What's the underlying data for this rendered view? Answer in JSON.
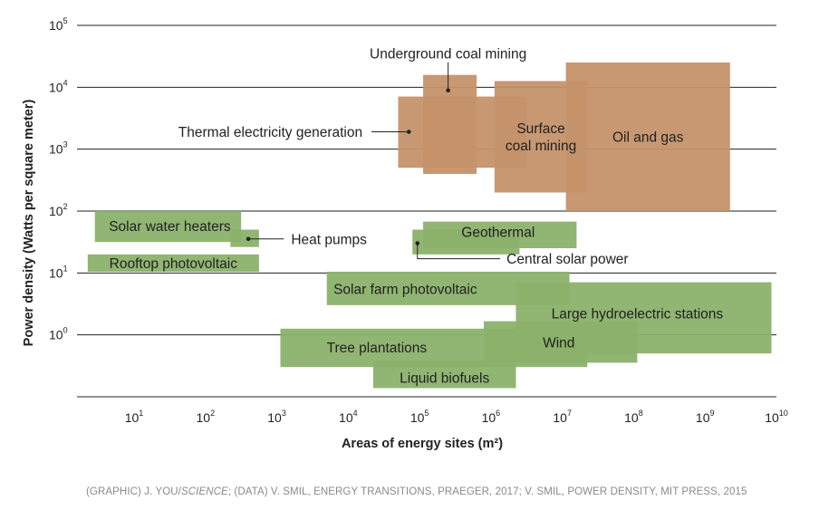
{
  "chart_data": {
    "type": "range-rectangles",
    "title": "",
    "xlabel": "Areas of energy sites (m²)",
    "ylabel": "Power density (Watts per square meter)",
    "x_scale": "log",
    "y_scale": "log",
    "xlim": [
      0.2,
      10
    ],
    "ylim": [
      -1,
      5
    ],
    "x_ticks": [
      {
        "exp": 1,
        "label_base": "10",
        "label_exp": "1"
      },
      {
        "exp": 2,
        "label_base": "10",
        "label_exp": "2"
      },
      {
        "exp": 3,
        "label_base": "10",
        "label_exp": "3"
      },
      {
        "exp": 4,
        "label_base": "10",
        "label_exp": "4"
      },
      {
        "exp": 5,
        "label_base": "10",
        "label_exp": "5"
      },
      {
        "exp": 6,
        "label_base": "10",
        "label_exp": "6"
      },
      {
        "exp": 7,
        "label_base": "10",
        "label_exp": "7"
      },
      {
        "exp": 8,
        "label_base": "10",
        "label_exp": "8"
      },
      {
        "exp": 9,
        "label_base": "10",
        "label_exp": "9"
      },
      {
        "exp": 10,
        "label_base": "10",
        "label_exp": "10"
      }
    ],
    "y_ticks": [
      {
        "exp": 0,
        "label_base": "10",
        "label_exp": "0"
      },
      {
        "exp": 1,
        "label_base": "10",
        "label_exp": "1"
      },
      {
        "exp": 2,
        "label_base": "10",
        "label_exp": "2"
      },
      {
        "exp": 3,
        "label_base": "10",
        "label_exp": "3"
      },
      {
        "exp": 4,
        "label_base": "10",
        "label_exp": "4"
      },
      {
        "exp": 5,
        "label_base": "10",
        "label_exp": "5"
      }
    ],
    "gridlines": "horizontal",
    "colors": {
      "fossil": "#c4926a",
      "renewable": "#8bb16a",
      "grid": "#222222",
      "text": "#222222",
      "credit": "#8a8a8a"
    },
    "series": [
      {
        "name": "Oil and gas",
        "category": "fossil",
        "x_range": [
          7.05,
          9.35
        ],
        "y_range": [
          2,
          4.4
        ],
        "label": [
          "Oil and gas"
        ],
        "label_at": [
          8.2,
          3.2
        ]
      },
      {
        "name": "Surface coal mining",
        "category": "fossil",
        "x_range": [
          6.05,
          7.35
        ],
        "y_range": [
          2.3,
          4.1
        ],
        "label": [
          "Surface",
          "coal mining"
        ],
        "label_at": [
          6.7,
          3.2
        ]
      },
      {
        "name": "Underground coal mining",
        "category": "fossil",
        "x_range": [
          5.05,
          5.8
        ],
        "y_range": [
          2.6,
          4.2
        ],
        "label": [
          "Underground coal mining"
        ],
        "callout": {
          "point": [
            5.4,
            3.95
          ],
          "label_at": [
            5.4,
            4.55
          ]
        }
      },
      {
        "name": "Thermal electricity generation",
        "category": "fossil",
        "x_range": [
          4.7,
          6.5
        ],
        "y_range": [
          2.7,
          3.85
        ],
        "label": [
          "Thermal electricity generation"
        ],
        "callout": {
          "point": [
            4.85,
            3.28
          ],
          "label_at": [
            4.2,
            3.28
          ]
        }
      },
      {
        "name": "Solar water heaters",
        "category": "renewable",
        "x_range": [
          0.45,
          2.5
        ],
        "y_range": [
          1.5,
          2.0
        ],
        "label": [
          "Solar water heaters"
        ],
        "label_at": [
          1.5,
          1.76
        ]
      },
      {
        "name": "Heat pumps",
        "category": "renewable",
        "x_range": [
          2.35,
          2.75
        ],
        "y_range": [
          1.42,
          1.7
        ],
        "label": [
          "Heat pumps"
        ],
        "callout": {
          "point": [
            2.6,
            1.55
          ],
          "label_at": [
            3.2,
            1.55
          ]
        }
      },
      {
        "name": "Rooftop photovoltaic",
        "category": "renewable",
        "x_range": [
          0.35,
          2.75
        ],
        "y_range": [
          1.02,
          1.3
        ],
        "label": [
          "Rooftop photovoltaic"
        ],
        "label_at": [
          1.55,
          1.16
        ]
      },
      {
        "name": "Geothermal",
        "category": "renewable",
        "x_range": [
          5.05,
          7.2
        ],
        "y_range": [
          1.4,
          1.83
        ],
        "label": [
          "Geothermal"
        ],
        "label_at": [
          6.1,
          1.66
        ]
      },
      {
        "name": "Central solar power",
        "category": "renewable",
        "x_range": [
          4.9,
          6.4
        ],
        "y_range": [
          1.3,
          1.7
        ],
        "label": [
          "Central solar power"
        ],
        "callout": {
          "point": [
            4.97,
            1.48
          ],
          "label_at": [
            7.4,
            1.23
          ]
        }
      },
      {
        "name": "Solar farm photovoltaic",
        "category": "renewable",
        "x_range": [
          3.7,
          7.1
        ],
        "y_range": [
          0.48,
          1.02
        ],
        "label": [
          "Solar farm photovoltaic"
        ],
        "label_at": [
          4.8,
          0.74
        ]
      },
      {
        "name": "Large hydroelectric stations",
        "category": "renewable",
        "x_range": [
          6.35,
          9.93
        ],
        "y_range": [
          -0.3,
          0.85
        ],
        "label": [
          "Large hydroelectric stations"
        ],
        "label_at": [
          8.05,
          0.35
        ]
      },
      {
        "name": "Wind",
        "category": "renewable",
        "x_range": [
          5.9,
          8.05
        ],
        "y_range": [
          -0.45,
          0.22
        ],
        "label": [
          "Wind"
        ],
        "label_at": [
          6.95,
          -0.12
        ]
      },
      {
        "name": "Tree plantations",
        "category": "renewable",
        "x_range": [
          3.05,
          7.35
        ],
        "y_range": [
          -0.52,
          0.1
        ],
        "label": [
          "Tree plantations"
        ],
        "label_at": [
          4.4,
          -0.2
        ]
      },
      {
        "name": "Liquid biofuels",
        "category": "renewable",
        "x_range": [
          4.35,
          6.35
        ],
        "y_range": [
          -0.86,
          -0.42
        ],
        "label": [
          "Liquid biofuels"
        ],
        "label_at": [
          5.35,
          -0.69
        ]
      }
    ]
  },
  "credit": {
    "part1": "(GRAPHIC) J. YOU/",
    "part2": "SCIENCE",
    "part3": "; (DATA) V. SMIL, ENERGY TRANSITIONS, PRAEGER, 2017; V. SMIL, POWER DENSITY, MIT PRESS, 2015"
  }
}
